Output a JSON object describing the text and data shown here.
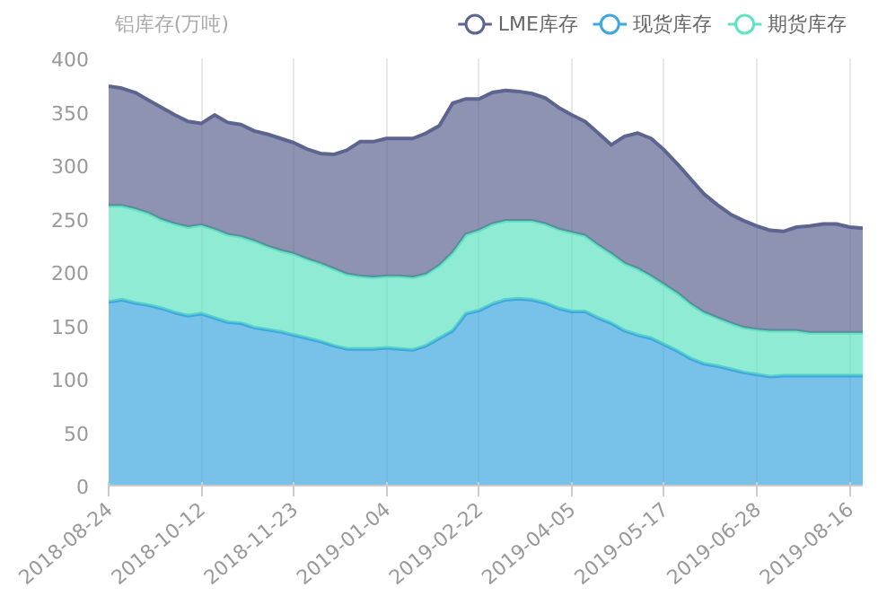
{
  "chart_data": {
    "type": "area",
    "stacked": true,
    "ylabel": "铝库存(万吨)",
    "categories": [
      "2018-08-24",
      null,
      null,
      null,
      null,
      null,
      null,
      "2018-10-12",
      null,
      null,
      null,
      null,
      null,
      null,
      "2018-11-23",
      null,
      null,
      null,
      null,
      null,
      null,
      "2019-01-04",
      null,
      null,
      null,
      null,
      null,
      null,
      "2019-02-22",
      null,
      null,
      null,
      null,
      null,
      null,
      "2019-04-05",
      null,
      null,
      null,
      null,
      null,
      null,
      "2019-05-17",
      null,
      null,
      null,
      null,
      null,
      null,
      "2019-06-28",
      null,
      null,
      null,
      null,
      null,
      null,
      "2019-08-16",
      null
    ],
    "ylim": [
      0,
      400
    ],
    "yticks": [
      0,
      50,
      100,
      150,
      200,
      250,
      300,
      350,
      400
    ],
    "grid": "x",
    "legend": "top right",
    "series": [
      {
        "name": "现货库存",
        "color": "#3fa7e0",
        "values": [
          172,
          174,
          171,
          169,
          166,
          162,
          159,
          161,
          157,
          153,
          152,
          148,
          146,
          144,
          141,
          138,
          135,
          131,
          128,
          128,
          128,
          129,
          128,
          127,
          131,
          138,
          145,
          161,
          164,
          170,
          174,
          175,
          174,
          171,
          166,
          163,
          163,
          157,
          152,
          145,
          141,
          138,
          132,
          126,
          119,
          114,
          112,
          109,
          106,
          104,
          102,
          103,
          103,
          103,
          103,
          103,
          103,
          103
        ]
      },
      {
        "name": "期货库存",
        "color": "#5fe3c0",
        "values": [
          90,
          88,
          88,
          86,
          83,
          83,
          83,
          83,
          83,
          82,
          81,
          81,
          78,
          76,
          76,
          74,
          73,
          72,
          70,
          68,
          67,
          67,
          68,
          68,
          67,
          68,
          73,
          74,
          75,
          75,
          74,
          73,
          74,
          74,
          74,
          74,
          71,
          68,
          65,
          63,
          62,
          58,
          56,
          54,
          51,
          48,
          45,
          43,
          42,
          42,
          43,
          42,
          42,
          40,
          40,
          40,
          40,
          40
        ]
      },
      {
        "name": "LME库存",
        "color": "#5c6590",
        "values": [
          112,
          110,
          109,
          106,
          105,
          102,
          99,
          95,
          107,
          105,
          105,
          103,
          105,
          105,
          104,
          103,
          103,
          107,
          116,
          126,
          127,
          129,
          129,
          130,
          132,
          131,
          140,
          127,
          123,
          123,
          122,
          121,
          119,
          118,
          114,
          110,
          107,
          105,
          102,
          119,
          127,
          129,
          126,
          121,
          117,
          111,
          106,
          102,
          100,
          97,
          94,
          93,
          97,
          100,
          102,
          102,
          99,
          98
        ]
      }
    ]
  }
}
